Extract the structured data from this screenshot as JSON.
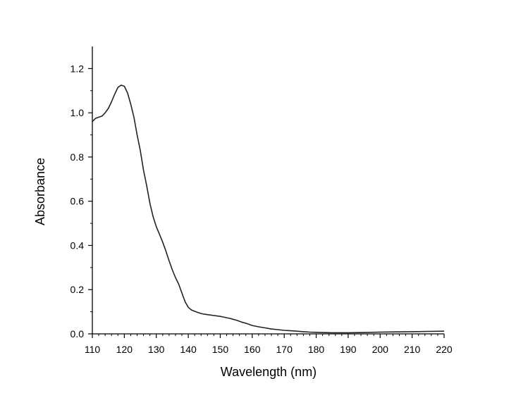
{
  "chart_data": {
    "type": "line",
    "title": "",
    "xlabel": "Wavelength (nm)",
    "ylabel": "Absorbance",
    "xlim": [
      110,
      220
    ],
    "ylim": [
      0.0,
      1.3
    ],
    "x_ticks": [
      110,
      120,
      130,
      140,
      150,
      160,
      170,
      180,
      190,
      200,
      210,
      220
    ],
    "x_tick_labels": [
      "110",
      "120",
      "130",
      "140",
      "150",
      "160",
      "170",
      "180",
      "190",
      "200",
      "210",
      "220"
    ],
    "y_ticks": [
      0.0,
      0.2,
      0.4,
      0.6,
      0.8,
      1.0,
      1.2
    ],
    "y_tick_labels": [
      "0.0",
      "0.2",
      "0.4",
      "0.6",
      "0.8",
      "1.0",
      "1.2"
    ],
    "grid": false,
    "line_color": "#222222",
    "series": [
      {
        "x": [
          110,
          111,
          112,
          113,
          114,
          115,
          116,
          117,
          118,
          119,
          120,
          121,
          122,
          123,
          124,
          125,
          126,
          127,
          128,
          129,
          130,
          131,
          132,
          133,
          134,
          135,
          136,
          137,
          138,
          139,
          140,
          141,
          142,
          143,
          144,
          145,
          146,
          147,
          148,
          149,
          150,
          151,
          152,
          153,
          154,
          155,
          156,
          157,
          158,
          159,
          160,
          162,
          164,
          166,
          168,
          170,
          172,
          174,
          176,
          178,
          180,
          185,
          190,
          195,
          200,
          205,
          210,
          215,
          220
        ],
        "y": [
          0.96,
          0.975,
          0.98,
          0.985,
          1.0,
          1.02,
          1.05,
          1.085,
          1.115,
          1.125,
          1.12,
          1.09,
          1.04,
          0.98,
          0.9,
          0.83,
          0.74,
          0.67,
          0.59,
          0.53,
          0.485,
          0.45,
          0.415,
          0.375,
          0.33,
          0.29,
          0.255,
          0.225,
          0.185,
          0.145,
          0.12,
          0.108,
          0.102,
          0.097,
          0.092,
          0.089,
          0.087,
          0.085,
          0.083,
          0.081,
          0.079,
          0.076,
          0.073,
          0.07,
          0.066,
          0.062,
          0.057,
          0.052,
          0.048,
          0.043,
          0.038,
          0.032,
          0.027,
          0.022,
          0.019,
          0.016,
          0.014,
          0.012,
          0.01,
          0.008,
          0.007,
          0.005,
          0.005,
          0.006,
          0.008,
          0.009,
          0.01,
          0.011,
          0.012
        ]
      }
    ]
  }
}
